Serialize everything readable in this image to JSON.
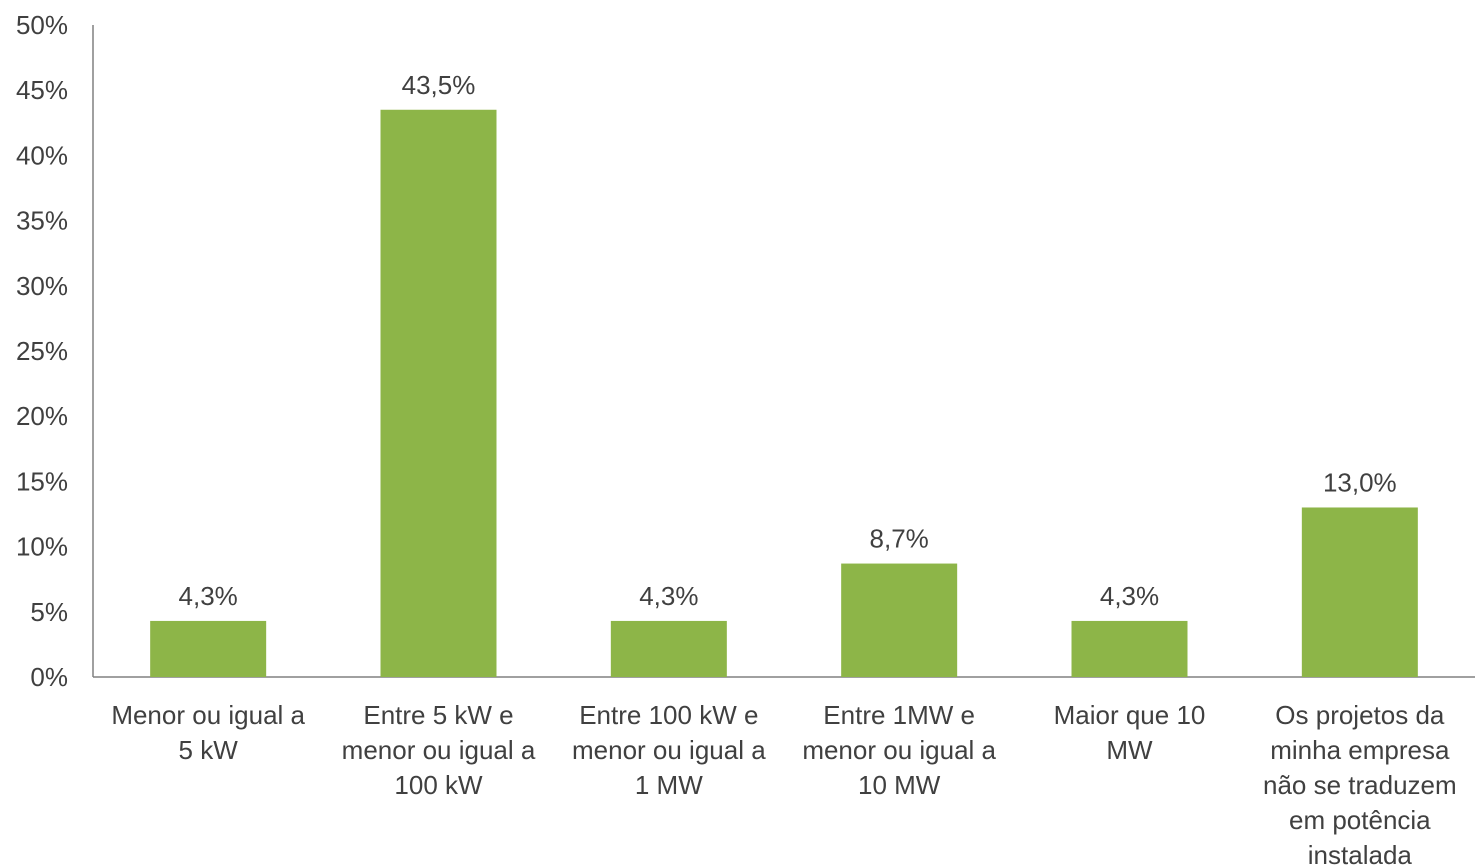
{
  "chart_data": {
    "type": "bar",
    "categories": [
      [
        "Menor ou igual a",
        "5 kW"
      ],
      [
        "Entre 5 kW e",
        "menor ou igual a",
        "100 kW"
      ],
      [
        "Entre 100 kW e",
        "menor ou igual a",
        "1 MW"
      ],
      [
        "Entre 1MW e",
        "menor ou igual a",
        "10 MW"
      ],
      [
        "Maior que 10",
        "MW"
      ],
      [
        "Os projetos da",
        "minha empresa",
        "não se traduzem",
        "em potência",
        "instalada"
      ]
    ],
    "values": [
      4.3,
      43.5,
      4.3,
      8.7,
      4.3,
      13.0
    ],
    "data_labels": [
      "4,3%",
      "43,5%",
      "4,3%",
      "8,7%",
      "4,3%",
      "13,0%"
    ],
    "y_ticks": [
      "0%",
      "5%",
      "10%",
      "15%",
      "20%",
      "25%",
      "30%",
      "35%",
      "40%",
      "45%",
      "50%"
    ],
    "ylim": [
      0,
      50
    ],
    "grid": false,
    "legend": "none",
    "bar_color": "#8db548",
    "axis_color": "#808080",
    "text_color": "#404040"
  }
}
